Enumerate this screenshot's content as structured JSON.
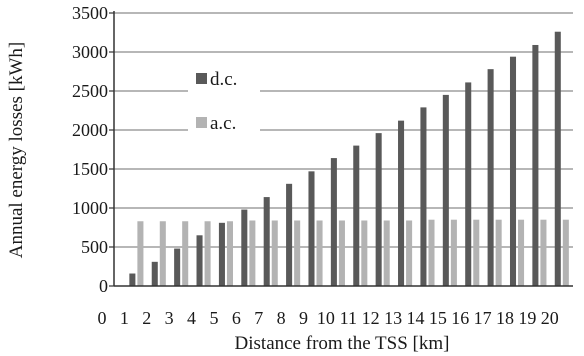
{
  "chart_data": {
    "type": "bar",
    "title": "",
    "xlabel": "Distance from the TSS [km]",
    "ylabel": "Annual energy losses [kWh]",
    "ylim": [
      0,
      3500
    ],
    "yticks": [
      0,
      500,
      1000,
      1500,
      2000,
      2500,
      3000,
      3500
    ],
    "categories": [
      0,
      1,
      2,
      3,
      4,
      5,
      6,
      7,
      8,
      9,
      10,
      11,
      12,
      13,
      14,
      15,
      16,
      17,
      18,
      19,
      20
    ],
    "grid": "horizontal",
    "legend_position": "upper-left inside",
    "series": [
      {
        "name": "d.c.",
        "color": "#595959",
        "values": [
          null,
          160,
          310,
          480,
          650,
          810,
          980,
          1140,
          1310,
          1470,
          1640,
          1800,
          1960,
          2120,
          2290,
          2450,
          2610,
          2780,
          2940,
          3090,
          3260
        ]
      },
      {
        "name": "a.c.",
        "color": "#b3b3b3",
        "values": [
          null,
          830,
          830,
          830,
          830,
          830,
          840,
          840,
          840,
          840,
          840,
          840,
          840,
          840,
          850,
          850,
          850,
          850,
          850,
          850,
          850
        ]
      }
    ]
  }
}
